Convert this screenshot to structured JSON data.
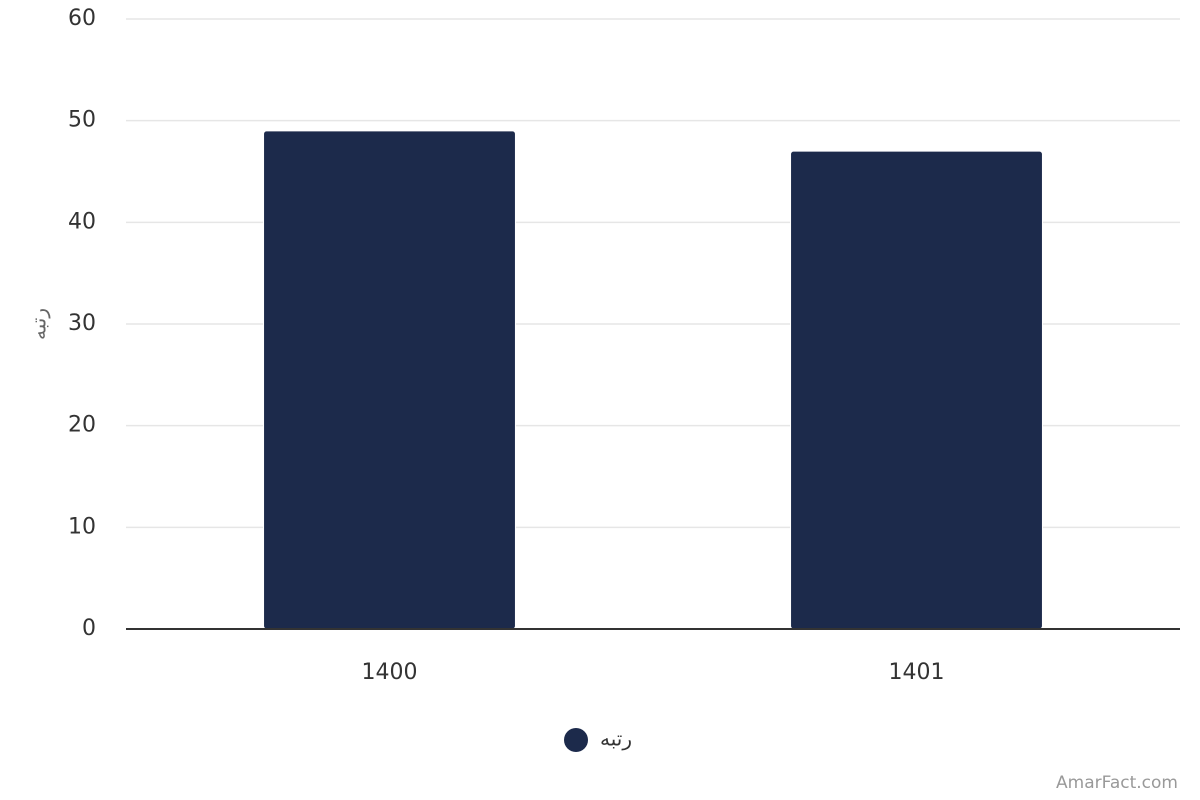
{
  "chart_data": {
    "type": "bar",
    "ylabel": "رتبه",
    "categories": [
      "1400",
      "1401"
    ],
    "series": [
      {
        "name": "رتبه",
        "color": "#1c2a4b",
        "values": [
          49,
          47
        ]
      }
    ],
    "ylim": [
      0,
      60
    ],
    "yticks": [
      0,
      10,
      20,
      30,
      40,
      50,
      60
    ],
    "grid": true,
    "legend": "bottom",
    "credit": "AmarFact.com"
  }
}
